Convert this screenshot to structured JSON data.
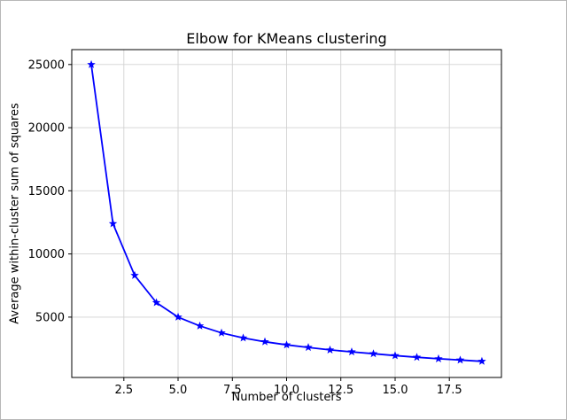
{
  "figure": {
    "background": "#ffffff",
    "border_color": "#b7b7b7"
  },
  "chart_data": {
    "type": "line",
    "title": "Elbow for KMeans clustering",
    "xlabel": "Number of clusters",
    "ylabel": "Average within-cluster sum of squares",
    "x": [
      1,
      2,
      3,
      4,
      5,
      6,
      7,
      8,
      9,
      10,
      11,
      12,
      13,
      14,
      15,
      16,
      17,
      18,
      19
    ],
    "y": [
      25000,
      12400,
      8300,
      6150,
      5000,
      4300,
      3750,
      3350,
      3050,
      2800,
      2600,
      2400,
      2250,
      2100,
      1950,
      1820,
      1700,
      1600,
      1500
    ],
    "xlim": [
      0.1,
      19.9
    ],
    "ylim": [
      220,
      26180
    ],
    "xticks": [
      2.5,
      5.0,
      7.5,
      10.0,
      12.5,
      15.0,
      17.5
    ],
    "xtick_labels": [
      "2.5",
      "5.0",
      "7.5",
      "10.0",
      "12.5",
      "15.0",
      "17.5"
    ],
    "yticks": [
      5000,
      10000,
      15000,
      20000,
      25000
    ],
    "ytick_labels": [
      "5000",
      "10000",
      "15000",
      "20000",
      "25000"
    ],
    "line_color": "#0000ff",
    "marker": "star",
    "grid": true,
    "grid_color": "#d2d2d2",
    "axes_edge_color": "#000000",
    "tick_color": "#000000",
    "legend": null
  }
}
